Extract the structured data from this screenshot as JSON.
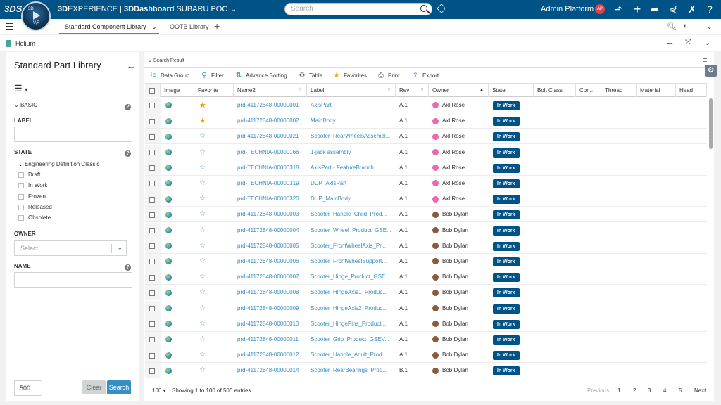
{
  "topbar": {
    "ds_logo": "3DS",
    "compass_top": "3D",
    "compass_bottom": "V,R",
    "brand_bold": "3D",
    "brand_rest": "EXPERIENCE | ",
    "app_name": "3DDashboard",
    "tenant": "SUBARU POC",
    "search_placeholder": "Search",
    "user_name": "Admin Platform",
    "user_initials": "AP"
  },
  "tabs": [
    {
      "label": "Standard Component Library",
      "active": true
    },
    {
      "label": "OOTB Library",
      "active": false
    }
  ],
  "app_header": {
    "title": "Helium"
  },
  "left_panel": {
    "title": "Standard Part Library",
    "basic_label": "BASIC",
    "label_field": {
      "label": "LABEL",
      "value": ""
    },
    "state_label": "STATE",
    "state_tree_parent": "Engineering Definition Classic",
    "states": [
      "Draft",
      "In Work",
      "Frozen",
      "Released",
      "Obsolete"
    ],
    "owner_label": "OWNER",
    "owner_placeholder": "Select...",
    "name_label": "NAME",
    "name_value": "",
    "limit_value": "500",
    "clear_label": "Clear",
    "search_label": "Search"
  },
  "results": {
    "title": "Search Result",
    "toolbar": [
      "Data Group",
      "Filter",
      "Advance Sorting",
      "Table",
      "Favorites",
      "Print",
      "Export"
    ],
    "columns": [
      "Image",
      "Favorite",
      "Name2",
      "Label",
      "Rev",
      "Owner",
      "State",
      "Bolt Class",
      "Cor...",
      "Thread",
      "Material",
      "Head"
    ],
    "rows": [
      {
        "fav": true,
        "name": "prd-41172848-00000001",
        "label": "AxlsPart",
        "rev": "A.1",
        "owner": "Axl Rose",
        "owner_type": "a",
        "state": "In Work"
      },
      {
        "fav": true,
        "name": "prd-41172848-00000002",
        "label": "MainBody",
        "rev": "A.1",
        "owner": "Axl Rose",
        "owner_type": "a",
        "state": "In Work"
      },
      {
        "fav": false,
        "name": "prd-41172848-00000021",
        "label": "Scooter_RearWheelsAssembl...",
        "rev": "A.1",
        "owner": "Axl Rose",
        "owner_type": "a",
        "state": "In Work"
      },
      {
        "fav": false,
        "name": "prd-TECHNIA-00000166",
        "label": "1-jack assembly",
        "rev": "A.1",
        "owner": "Axl Rose",
        "owner_type": "a",
        "state": "In Work"
      },
      {
        "fav": false,
        "name": "prd-TECHNIA-00000318",
        "label": "AxlsPart - FeatureBranch",
        "rev": "A.1",
        "owner": "Axl Rose",
        "owner_type": "a",
        "state": "In Work"
      },
      {
        "fav": false,
        "name": "prd-TECHNIA-00000319",
        "label": "DUP_AxlsPart",
        "rev": "A.1",
        "owner": "Axl Rose",
        "owner_type": "a",
        "state": "In Work"
      },
      {
        "fav": false,
        "name": "prd-TECHNIA-00000320",
        "label": "DUP_MainBody",
        "rev": "A.1",
        "owner": "Axl Rose",
        "owner_type": "a",
        "state": "In Work"
      },
      {
        "fav": false,
        "name": "prd-41172848-00000003",
        "label": "Scooter_Handle_Child_Prod...",
        "rev": "A.1",
        "owner": "Bob Dylan",
        "owner_type": "b",
        "state": "In Work"
      },
      {
        "fav": false,
        "name": "prd-41172848-00000004",
        "label": "Scooter_Wheel_Product_GSE...",
        "rev": "A.1",
        "owner": "Bob Dylan",
        "owner_type": "b",
        "state": "In Work"
      },
      {
        "fav": false,
        "name": "prd-41172848-00000005",
        "label": "Scooter_FrontWheelAxis_Pr...",
        "rev": "A.1",
        "owner": "Bob Dylan",
        "owner_type": "b",
        "state": "In Work"
      },
      {
        "fav": false,
        "name": "prd-41172848-00000006",
        "label": "Scooter_FrontWheelSupport...",
        "rev": "A.1",
        "owner": "Bob Dylan",
        "owner_type": "b",
        "state": "In Work"
      },
      {
        "fav": false,
        "name": "prd-41172848-00000007",
        "label": "Scooter_Hinge_Product_GSE...",
        "rev": "A.1",
        "owner": "Bob Dylan",
        "owner_type": "b",
        "state": "In Work"
      },
      {
        "fav": false,
        "name": "prd-41172848-00000008",
        "label": "Scooter_HingeAxis1_Produc...",
        "rev": "A.1",
        "owner": "Bob Dylan",
        "owner_type": "b",
        "state": "In Work"
      },
      {
        "fav": false,
        "name": "prd-41172848-00000009",
        "label": "Scooter_HingeAxis2_Produc...",
        "rev": "A.1",
        "owner": "Bob Dylan",
        "owner_type": "b",
        "state": "In Work"
      },
      {
        "fav": false,
        "name": "prd-41172848-00000010",
        "label": "Scooter_HingePins_Product...",
        "rev": "A.1",
        "owner": "Bob Dylan",
        "owner_type": "b",
        "state": "In Work"
      },
      {
        "fav": false,
        "name": "prd-41172848-00000011",
        "label": "Scooter_Grip_Product_GSEV...",
        "rev": "A.1",
        "owner": "Bob Dylan",
        "owner_type": "b",
        "state": "In Work"
      },
      {
        "fav": false,
        "name": "prd-41172848-00000012",
        "label": "Scooter_Handle_Adult_Prod...",
        "rev": "A.1",
        "owner": "Bob Dylan",
        "owner_type": "b",
        "state": "In Work"
      },
      {
        "fav": false,
        "name": "prd-41172848-00000014",
        "label": "Scooter_RearBearings_Prod...",
        "rev": "B.1",
        "owner": "Bob Dylan",
        "owner_type": "b",
        "state": "In Work"
      }
    ],
    "page_size": "100",
    "info": "Showing 1 to 100 of 500 entries",
    "pagination": [
      "Previous",
      "1",
      "2",
      "3",
      "4",
      "5",
      "Next"
    ]
  },
  "colors": {
    "topbar": "#005386",
    "accent": "#368ec4",
    "state_badge": "#005386",
    "favorite": "#f39c12"
  },
  "icons": [
    "ds-logo-icon",
    "compass-icon",
    "search-icon",
    "tag-icon",
    "share-icon",
    "plus-icon",
    "forward-icon",
    "network-icon",
    "tools-icon",
    "help-icon",
    "gear-icon",
    "star-icon",
    "globe-icon"
  ]
}
